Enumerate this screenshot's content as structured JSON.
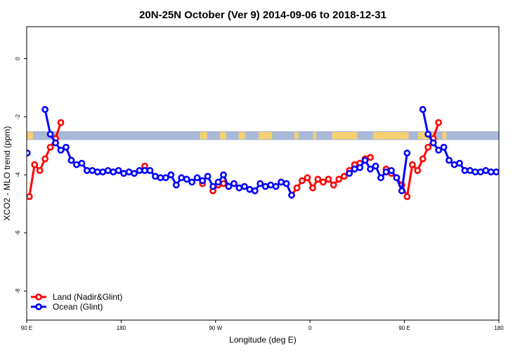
{
  "chart_data": {
    "type": "line",
    "title": "20N-25N October (Ver 9)   2014-09-06 to 2018-12-31",
    "xlabel": "Longitude (deg E)",
    "ylabel": "XCO2 - MLO trend (ppm)",
    "xlim": [
      90,
      540
    ],
    "ylim": [
      -9,
      1.1
    ],
    "x_ticks": [
      {
        "value": 90,
        "label": "90 E"
      },
      {
        "value": 180,
        "label": "180"
      },
      {
        "value": 270,
        "label": "90 W"
      },
      {
        "value": 360,
        "label": "0"
      },
      {
        "value": 450,
        "label": "90 E"
      },
      {
        "value": 540,
        "label": "180"
      }
    ],
    "y_ticks": [
      {
        "value": 0,
        "label": "0"
      },
      {
        "value": -2,
        "label": "-2"
      },
      {
        "value": -4,
        "label": "-4"
      },
      {
        "value": -6,
        "label": "-6"
      },
      {
        "value": -8,
        "label": "-8"
      }
    ],
    "grid": false,
    "legend_position": "bottom-left",
    "map_strip": {
      "y_range": [
        -2.5,
        -2.8
      ],
      "ocean_color": "#a8b8d8",
      "land_color": "#f5d070",
      "land_x_ranges": [
        [
          90,
          96
        ],
        [
          255,
          262
        ],
        [
          274,
          280
        ],
        [
          292,
          298
        ],
        [
          311,
          324
        ],
        [
          345,
          349
        ],
        [
          363,
          366
        ],
        [
          381,
          405
        ],
        [
          420,
          454
        ],
        [
          463,
          477
        ],
        [
          486,
          490
        ]
      ]
    },
    "series": [
      {
        "name": "Land (Nadir&Glint)",
        "color": "#ff0000",
        "segments": [
          [
            [
              92.5,
              -4.75
            ],
            [
              97.5,
              -3.65
            ],
            [
              102.5,
              -3.85
            ],
            [
              107.5,
              -3.45
            ],
            [
              112.5,
              -3.05
            ],
            [
              117.5,
              -2.75
            ],
            [
              122.5,
              -2.2
            ]
          ],
          [
            [
              202.5,
              -3.7
            ]
          ],
          [
            [
              257.5,
              -4.3
            ]
          ],
          [
            [
              267.5,
              -4.55
            ],
            [
              272.5,
              -4.35
            ],
            [
              277.5,
              -4.3
            ]
          ],
          [
            [
              342.5,
              -4.7
            ],
            [
              347.5,
              -4.45
            ],
            [
              352.5,
              -4.2
            ],
            [
              357.5,
              -4.1
            ],
            [
              362.5,
              -4.45
            ],
            [
              367.5,
              -4.15
            ],
            [
              372.5,
              -4.25
            ],
            [
              377.5,
              -4.15
            ],
            [
              382.5,
              -4.35
            ],
            [
              387.5,
              -4.15
            ],
            [
              392.5,
              -4.05
            ],
            [
              397.5,
              -3.85
            ],
            [
              402.5,
              -3.65
            ],
            [
              407.5,
              -3.6
            ],
            [
              412.5,
              -3.45
            ],
            [
              417.5,
              -3.4
            ]
          ],
          [
            [
              432.5,
              -3.8
            ],
            [
              437.5,
              -3.95
            ],
            [
              442.5,
              -4.1
            ],
            [
              447.5,
              -4.35
            ],
            [
              452.5,
              -4.75
            ],
            [
              457.5,
              -3.65
            ],
            [
              462.5,
              -3.85
            ],
            [
              467.5,
              -3.45
            ],
            [
              472.5,
              -3.05
            ],
            [
              477.5,
              -2.75
            ],
            [
              482.5,
              -2.2
            ]
          ]
        ]
      },
      {
        "name": "Ocean (Glint)",
        "color": "#0000ff",
        "segments": [
          [
            [
              90.5,
              -3.25
            ]
          ],
          [
            [
              107.5,
              -1.75
            ],
            [
              112.5,
              -2.6
            ],
            [
              117.5,
              -2.9
            ],
            [
              122.5,
              -3.15
            ],
            [
              127.5,
              -3.05
            ],
            [
              132.5,
              -3.5
            ],
            [
              137.5,
              -3.65
            ],
            [
              142.5,
              -3.6
            ],
            [
              147.5,
              -3.85
            ],
            [
              152.5,
              -3.85
            ],
            [
              157.5,
              -3.9
            ],
            [
              162.5,
              -3.9
            ],
            [
              167.5,
              -3.85
            ],
            [
              172.5,
              -3.9
            ],
            [
              177.5,
              -3.85
            ],
            [
              182.5,
              -3.95
            ],
            [
              187.5,
              -3.9
            ],
            [
              192.5,
              -3.95
            ],
            [
              197.5,
              -3.85
            ],
            [
              202.5,
              -3.85
            ],
            [
              207.5,
              -3.85
            ],
            [
              212.5,
              -4.05
            ],
            [
              217.5,
              -4.1
            ],
            [
              222.5,
              -4.1
            ],
            [
              227.5,
              -4.0
            ],
            [
              232.5,
              -4.35
            ],
            [
              237.5,
              -4.1
            ],
            [
              242.5,
              -4.15
            ],
            [
              247.5,
              -4.25
            ],
            [
              252.5,
              -4.1
            ],
            [
              257.5,
              -4.2
            ],
            [
              262.5,
              -4.05
            ],
            [
              267.5,
              -4.4
            ],
            [
              272.5,
              -4.25
            ],
            [
              277.5,
              -4.0
            ],
            [
              282.5,
              -4.4
            ],
            [
              287.5,
              -4.3
            ],
            [
              292.5,
              -4.45
            ],
            [
              297.5,
              -4.4
            ],
            [
              302.5,
              -4.5
            ],
            [
              307.5,
              -4.55
            ],
            [
              312.5,
              -4.3
            ],
            [
              317.5,
              -4.4
            ],
            [
              322.5,
              -4.35
            ],
            [
              327.5,
              -4.4
            ],
            [
              332.5,
              -4.25
            ],
            [
              337.5,
              -4.3
            ],
            [
              342.5,
              -4.7
            ]
          ],
          [
            [
              397.5,
              -3.95
            ],
            [
              402.5,
              -3.8
            ],
            [
              407.5,
              -3.75
            ],
            [
              412.5,
              -3.5
            ],
            [
              417.5,
              -3.8
            ],
            [
              422.5,
              -3.7
            ],
            [
              427.5,
              -4.1
            ],
            [
              432.5,
              -3.9
            ],
            [
              437.5,
              -3.85
            ],
            [
              442.5,
              -4.1
            ],
            [
              447.5,
              -4.55
            ],
            [
              452.5,
              -3.25
            ]
          ],
          [
            [
              467.5,
              -1.75
            ],
            [
              472.5,
              -2.6
            ],
            [
              477.5,
              -2.9
            ],
            [
              482.5,
              -3.15
            ],
            [
              487.5,
              -3.05
            ],
            [
              492.5,
              -3.5
            ],
            [
              497.5,
              -3.65
            ],
            [
              502.5,
              -3.6
            ],
            [
              507.5,
              -3.85
            ],
            [
              512.5,
              -3.85
            ],
            [
              517.5,
              -3.9
            ],
            [
              522.5,
              -3.9
            ],
            [
              527.5,
              -3.85
            ],
            [
              532.5,
              -3.9
            ],
            [
              537.5,
              -3.9
            ]
          ]
        ]
      }
    ]
  }
}
